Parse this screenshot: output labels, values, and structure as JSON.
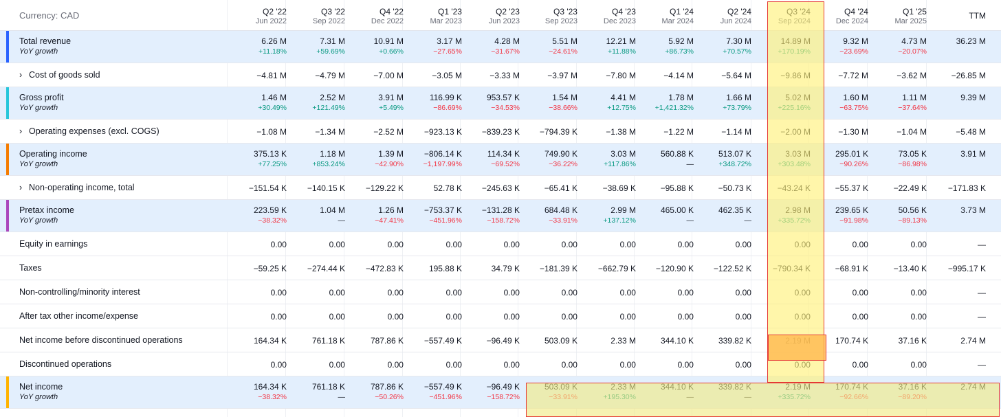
{
  "currency_label": "Currency: CAD",
  "columns": [
    {
      "period": "Q2 '22",
      "date": "Jun 2022"
    },
    {
      "period": "Q3 '22",
      "date": "Sep 2022"
    },
    {
      "period": "Q4 '22",
      "date": "Dec 2022"
    },
    {
      "period": "Q1 '23",
      "date": "Mar 2023"
    },
    {
      "period": "Q2 '23",
      "date": "Jun 2023"
    },
    {
      "period": "Q3 '23",
      "date": "Sep 2023"
    },
    {
      "period": "Q4 '23",
      "date": "Dec 2023"
    },
    {
      "period": "Q1 '24",
      "date": "Mar 2024"
    },
    {
      "period": "Q2 '24",
      "date": "Jun 2024"
    },
    {
      "period": "Q3 '24",
      "date": "Sep 2024"
    },
    {
      "period": "Q4 '24",
      "date": "Dec 2024"
    },
    {
      "period": "Q1 '25",
      "date": "Mar 2025"
    },
    {
      "period": "TTM",
      "date": ""
    }
  ],
  "growth_label": "YoY growth",
  "rows": [
    {
      "key": "total-revenue",
      "label": "Total revenue",
      "highlight": true,
      "bar": "#2962ff",
      "expand": false,
      "values": [
        "6.26 M",
        "7.31 M",
        "10.91 M",
        "3.17 M",
        "4.28 M",
        "5.51 M",
        "12.21 M",
        "5.92 M",
        "7.30 M",
        "14.89 M",
        "9.32 M",
        "4.73 M",
        "36.23 M"
      ],
      "growth": [
        "+11.18%",
        "+59.69%",
        "+0.66%",
        "−27.65%",
        "−31.67%",
        "−24.61%",
        "+11.88%",
        "+86.73%",
        "+70.57%",
        "+170.19%",
        "−23.69%",
        "−20.07%",
        ""
      ]
    },
    {
      "key": "cost-of-goods-sold",
      "label": "Cost of goods sold",
      "highlight": false,
      "bar": "",
      "expand": true,
      "values": [
        "−4.81 M",
        "−4.79 M",
        "−7.00 M",
        "−3.05 M",
        "−3.33 M",
        "−3.97 M",
        "−7.80 M",
        "−4.14 M",
        "−5.64 M",
        "−9.86 M",
        "−7.72 M",
        "−3.62 M",
        "−26.85 M"
      ]
    },
    {
      "key": "gross-profit",
      "label": "Gross profit",
      "highlight": true,
      "bar": "#26c6da",
      "expand": false,
      "values": [
        "1.46 M",
        "2.52 M",
        "3.91 M",
        "116.99 K",
        "953.57 K",
        "1.54 M",
        "4.41 M",
        "1.78 M",
        "1.66 M",
        "5.02 M",
        "1.60 M",
        "1.11 M",
        "9.39 M"
      ],
      "growth": [
        "+30.49%",
        "+121.49%",
        "+5.49%",
        "−86.69%",
        "−34.53%",
        "−38.66%",
        "+12.75%",
        "+1,421.32%",
        "+73.79%",
        "+225.16%",
        "−63.75%",
        "−37.64%",
        ""
      ]
    },
    {
      "key": "operating-expenses",
      "label": "Operating expenses (excl. COGS)",
      "highlight": false,
      "bar": "",
      "expand": true,
      "values": [
        "−1.08 M",
        "−1.34 M",
        "−2.52 M",
        "−923.13 K",
        "−839.23 K",
        "−794.39 K",
        "−1.38 M",
        "−1.22 M",
        "−1.14 M",
        "−2.00 M",
        "−1.30 M",
        "−1.04 M",
        "−5.48 M"
      ]
    },
    {
      "key": "operating-income",
      "label": "Operating income",
      "highlight": true,
      "bar": "#f57c00",
      "expand": false,
      "values": [
        "375.13 K",
        "1.18 M",
        "1.39 M",
        "−806.14 K",
        "114.34 K",
        "749.90 K",
        "3.03 M",
        "560.88 K",
        "513.07 K",
        "3.03 M",
        "295.01 K",
        "73.05 K",
        "3.91 M"
      ],
      "growth": [
        "+77.25%",
        "+853.24%",
        "−42.90%",
        "−1,197.99%",
        "−69.52%",
        "−36.22%",
        "+117.86%",
        "—",
        "+348.72%",
        "+303.48%",
        "−90.26%",
        "−86.98%",
        ""
      ]
    },
    {
      "key": "non-operating-income",
      "label": "Non-operating income, total",
      "highlight": false,
      "bar": "",
      "expand": true,
      "values": [
        "−151.54 K",
        "−140.15 K",
        "−129.22 K",
        "52.78 K",
        "−245.63 K",
        "−65.41 K",
        "−38.69 K",
        "−95.88 K",
        "−50.73 K",
        "−43.24 K",
        "−55.37 K",
        "−22.49 K",
        "−171.83 K"
      ]
    },
    {
      "key": "pretax-income",
      "label": "Pretax income",
      "highlight": true,
      "bar": "#ab47bc",
      "expand": false,
      "values": [
        "223.59 K",
        "1.04 M",
        "1.26 M",
        "−753.37 K",
        "−131.28 K",
        "684.48 K",
        "2.99 M",
        "465.00 K",
        "462.35 K",
        "2.98 M",
        "239.65 K",
        "50.56 K",
        "3.73 M"
      ],
      "growth": [
        "−38.32%",
        "—",
        "−47.41%",
        "−451.96%",
        "−158.72%",
        "−33.91%",
        "+137.12%",
        "—",
        "—",
        "+335.72%",
        "−91.98%",
        "−89.13%",
        ""
      ]
    },
    {
      "key": "equity-in-earnings",
      "label": "Equity in earnings",
      "highlight": false,
      "bar": "",
      "expand": false,
      "values": [
        "0.00",
        "0.00",
        "0.00",
        "0.00",
        "0.00",
        "0.00",
        "0.00",
        "0.00",
        "0.00",
        "0.00",
        "0.00",
        "0.00",
        "—"
      ]
    },
    {
      "key": "taxes",
      "label": "Taxes",
      "highlight": false,
      "bar": "",
      "expand": false,
      "values": [
        "−59.25 K",
        "−274.44 K",
        "−472.83 K",
        "195.88 K",
        "34.79 K",
        "−181.39 K",
        "−662.79 K",
        "−120.90 K",
        "−122.52 K",
        "−790.34 K",
        "−68.91 K",
        "−13.40 K",
        "−995.17 K"
      ]
    },
    {
      "key": "minority-interest",
      "label": "Non-controlling/minority interest",
      "highlight": false,
      "bar": "",
      "expand": false,
      "values": [
        "0.00",
        "0.00",
        "0.00",
        "0.00",
        "0.00",
        "0.00",
        "0.00",
        "0.00",
        "0.00",
        "0.00",
        "0.00",
        "0.00",
        "—"
      ]
    },
    {
      "key": "after-tax-other",
      "label": "After tax other income/expense",
      "highlight": false,
      "bar": "",
      "expand": false,
      "values": [
        "0.00",
        "0.00",
        "0.00",
        "0.00",
        "0.00",
        "0.00",
        "0.00",
        "0.00",
        "0.00",
        "0.00",
        "0.00",
        "0.00",
        "—"
      ]
    },
    {
      "key": "net-income-before-disc",
      "label": "Net income before discontinued operations",
      "highlight": false,
      "bar": "",
      "expand": false,
      "values": [
        "164.34 K",
        "761.18 K",
        "787.86 K",
        "−557.49 K",
        "−96.49 K",
        "503.09 K",
        "2.33 M",
        "344.10 K",
        "339.82 K",
        "2.19 M",
        "170.74 K",
        "37.16 K",
        "2.74 M"
      ]
    },
    {
      "key": "discontinued-operations",
      "label": "Discontinued operations",
      "highlight": false,
      "bar": "",
      "expand": false,
      "values": [
        "0.00",
        "0.00",
        "0.00",
        "0.00",
        "0.00",
        "0.00",
        "0.00",
        "0.00",
        "0.00",
        "0.00",
        "0.00",
        "0.00",
        "—"
      ]
    },
    {
      "key": "net-income",
      "label": "Net income",
      "highlight": true,
      "bar": "#ffb300",
      "expand": false,
      "values": [
        "164.34 K",
        "761.18 K",
        "787.86 K",
        "−557.49 K",
        "−96.49 K",
        "503.09 K",
        "2.33 M",
        "344.10 K",
        "339.82 K",
        "2.19 M",
        "170.74 K",
        "37.16 K",
        "2.74 M"
      ],
      "growth": [
        "−38.32%",
        "—",
        "−50.26%",
        "−451.96%",
        "−158.72%",
        "−33.91%",
        "+195.30%",
        "—",
        "—",
        "+335.72%",
        "−92.66%",
        "−89.20%",
        ""
      ]
    }
  ]
}
